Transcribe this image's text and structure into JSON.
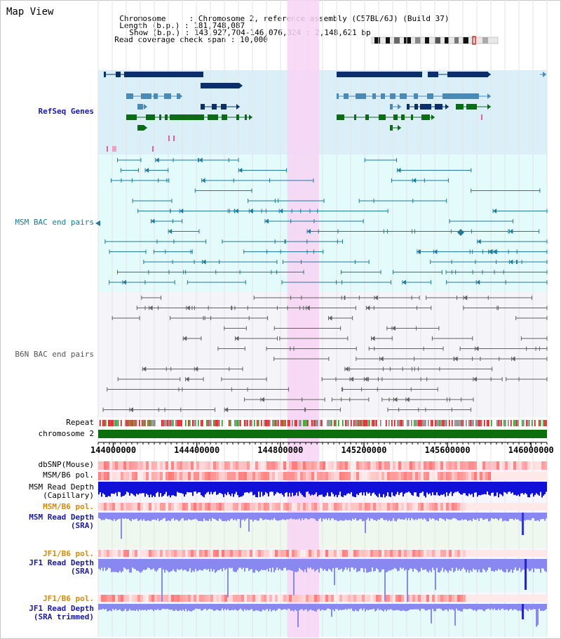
{
  "header": {
    "title": "Map View",
    "chromosome_key": "Chromosome",
    "chromosome_value": "Chromosome 2, reference assembly (C57BL/6J) (Build 37)",
    "length_key": "Length (b.p.)",
    "length_value": "181,748,087",
    "show_key": "Show (b.p.)",
    "show_value": "143,927,704-146,076,324 : 2,148,621 bp",
    "read_cov_key": "Read coverage check span",
    "read_cov_value": "10,000"
  },
  "tracks": {
    "refseq": "RefSeq Genes",
    "msm_bac": "MSM BAC end pairs",
    "b6n_bac": "B6N BAC end pairs",
    "repeat": "Repeat",
    "chromosome": "chromosome 2",
    "dbsnp": "dbSNP(Mouse)",
    "msm_b6_pol_1": "MSM/B6 pol.",
    "msm_read_depth_cap_1": "MSM Read Depth",
    "msm_read_depth_cap_2": "(Capillary)",
    "msm_b6_pol_2": "MSM/B6 pol.",
    "msm_read_depth_sra_1": "MSM Read Depth",
    "msm_read_depth_sra_2": "(SRA)",
    "jf1_b6_pol_1": "JF1/B6 pol.",
    "jf1_read_depth_sra_1": "JF1 Read Depth",
    "jf1_read_depth_sra_2": "(SRA)",
    "jf1_b6_pol_2": "JF1/B6 pol.",
    "jf1_read_depth_trim_1": "JF1 Read Depth",
    "jf1_read_depth_trim_2": "(SRA trimmed)"
  },
  "axis": {
    "start": 143927704,
    "end": 146076324,
    "ticks": [
      144000000,
      144400000,
      144800000,
      145200000,
      145600000,
      146000000
    ],
    "tick_labels": [
      "144000000",
      "144400000",
      "144800000",
      "145200000",
      "145600000",
      "146000000"
    ]
  },
  "highlight": {
    "start": 144833000,
    "end": 144985000
  },
  "colors": {
    "refseq_bg": "#dbeff9",
    "msm_bg": "#e3fbfb",
    "b6n_bg": "#f5f5f9",
    "highlight": "#f8d4f4",
    "gene_dark": "#0b3068",
    "gene_mid": "#4a8ab5",
    "gene_green": "#0b6b16",
    "msm_line": "#1f7a9a",
    "b6n_line": "#606060",
    "chrom_bar": "#0c6e0c",
    "depth_dark": "#1010d8",
    "depth_light": "#8888f0"
  }
}
